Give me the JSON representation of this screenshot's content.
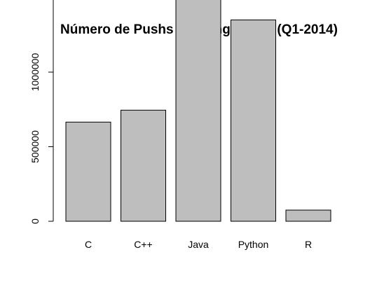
{
  "chart_data": {
    "type": "bar",
    "title": "Número de Pushs por Linguagem (Q1-2014)",
    "xlabel": "",
    "ylabel": "",
    "categories": [
      "C",
      "C++",
      "Java",
      "Python",
      "R"
    ],
    "values": [
      665000,
      745000,
      1665000,
      1350000,
      75000
    ],
    "ylim": [
      0,
      1700000
    ],
    "yticks": [
      0,
      500000,
      1000000,
      1500000
    ],
    "ytick_labels": [
      "0",
      "500000",
      "1000000",
      ""
    ],
    "bar_color": "#bebebe",
    "grid": false,
    "legend": "none"
  }
}
